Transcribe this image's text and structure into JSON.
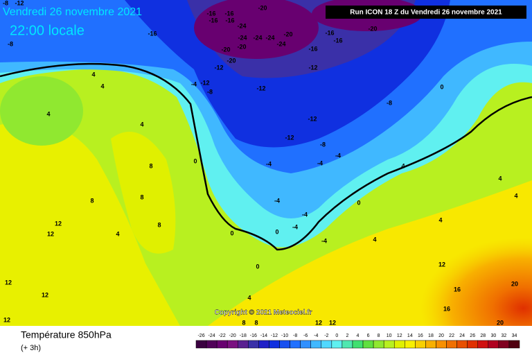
{
  "header": {
    "date": "Vendredi 26 novembre 2021",
    "time": "22:00 locale",
    "run": "Run ICON 18 Z du Vendredi 26 novembre 2021"
  },
  "copyright": "Copyright © 2021 Meteociel.fr",
  "footer": {
    "title": "Température 850hPa",
    "lead": "(+ 3h)"
  },
  "scale": {
    "values": [
      -26,
      -24,
      -22,
      -20,
      -18,
      -16,
      -14,
      -12,
      -10,
      -8,
      -6,
      -4,
      -2,
      0,
      2,
      4,
      6,
      8,
      10,
      12,
      14,
      16,
      18,
      20,
      22,
      24,
      26,
      28,
      30,
      32,
      34
    ],
    "colors": [
      "#3a0040",
      "#500058",
      "#680070",
      "#7a1080",
      "#5a2090",
      "#3a30a8",
      "#2020c8",
      "#1030e0",
      "#1850f0",
      "#2070ff",
      "#3090ff",
      "#40b8ff",
      "#50d8ff",
      "#60f0f0",
      "#50e8b0",
      "#40e070",
      "#60e040",
      "#90e830",
      "#b8f020",
      "#e0f000",
      "#f8f000",
      "#f8d000",
      "#f8b000",
      "#f89000",
      "#f07000",
      "#e85000",
      "#e03000",
      "#d01010",
      "#b00020",
      "#800020",
      "#500010"
    ]
  },
  "contour_labels": [
    -8,
    -12,
    -16,
    -16,
    -20,
    -16,
    -16,
    -24,
    -16,
    -8,
    -24,
    -20,
    -24,
    -24,
    -24,
    -20,
    -20,
    -16,
    -16,
    -20,
    -16,
    -20,
    -12,
    -12,
    -4,
    -12,
    -8,
    -12,
    -12,
    -12,
    -8,
    -8,
    0,
    -4,
    -4,
    -4,
    0,
    -4,
    -4,
    0,
    -4,
    0,
    -4,
    4,
    0,
    4,
    4,
    4,
    4,
    8,
    4,
    8,
    12,
    12,
    12,
    12,
    12,
    8,
    8,
    4,
    8,
    8,
    12,
    12,
    12,
    16,
    16,
    20,
    20,
    4,
    4,
    0,
    4,
    4
  ]
}
